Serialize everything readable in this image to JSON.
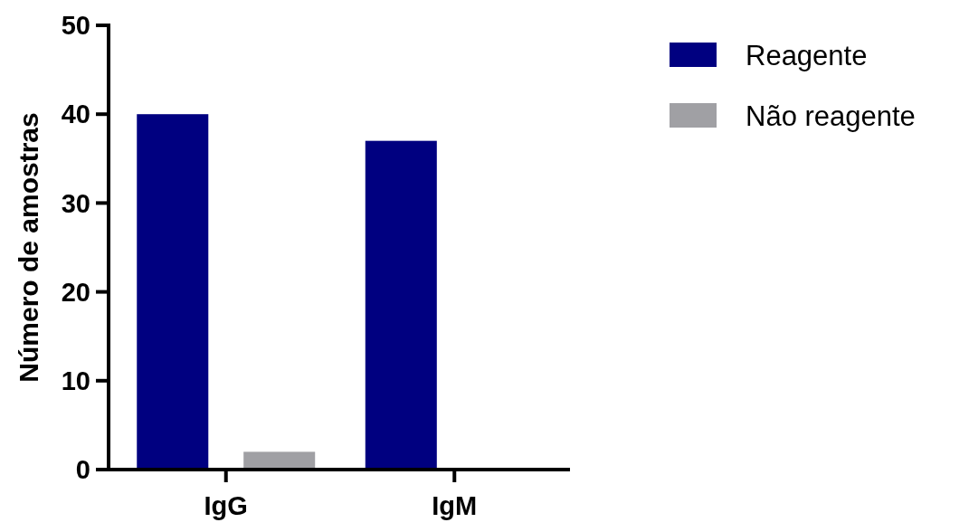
{
  "chart_data": {
    "type": "bar",
    "ylabel": "Número de amostras",
    "categories": [
      "IgG",
      "IgM"
    ],
    "series": [
      {
        "name": "Reagente",
        "color": "#000080",
        "values": [
          40,
          37
        ]
      },
      {
        "name": "Não reagente",
        "color": "#a0a0a4",
        "values": [
          2,
          0
        ]
      }
    ],
    "ylim": [
      0,
      50
    ],
    "yticks": [
      0,
      10,
      20,
      30,
      40,
      50
    ],
    "grid": false,
    "legend": "top right"
  }
}
